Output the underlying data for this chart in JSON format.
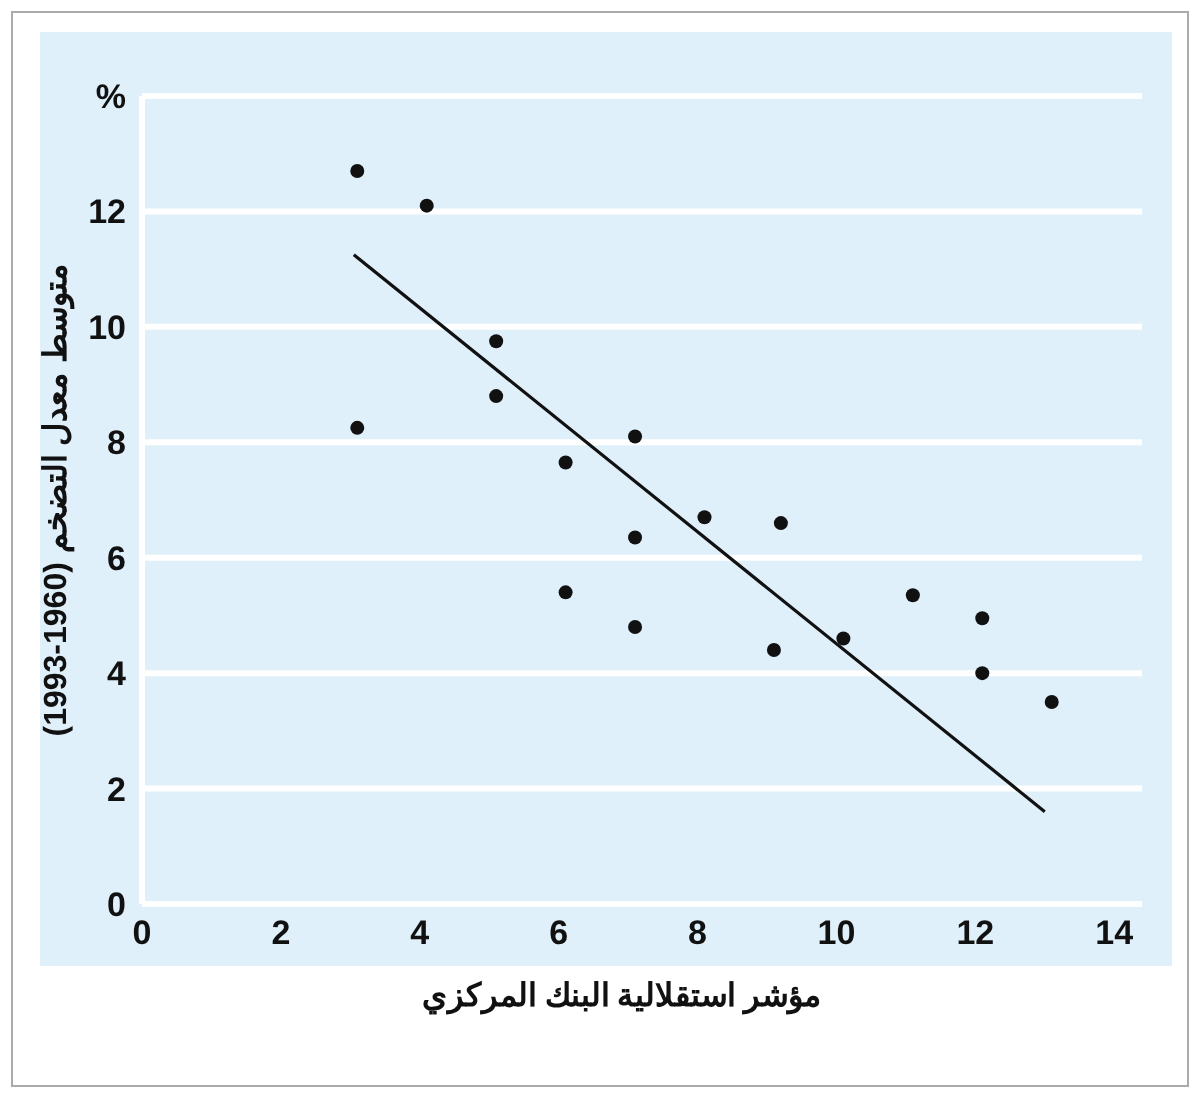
{
  "chart_data": {
    "type": "scatter",
    "xlabel": "مؤشر استقلالية البنك المركزي",
    "ylabel": "متوسط معدل التضخم (1960-1993)",
    "series": [
      {
        "color": "#111111",
        "marker": "circle",
        "x": [
          3.1,
          4.1,
          5.1,
          5.1,
          3.1,
          6.1,
          7.1,
          7.1,
          6.1,
          7.1,
          8.1,
          9.2,
          9.1,
          10.1,
          11.1,
          12.1,
          12.1,
          13.1
        ],
        "values": [
          12.7,
          12.1,
          9.75,
          8.8,
          8.25,
          7.65,
          8.1,
          6.35,
          5.4,
          4.8,
          6.7,
          6.6,
          4.4,
          4.6,
          5.35,
          4.95,
          4.0,
          3.5
        ]
      },
      {
        "type": "line",
        "color": "#111111",
        "line_style": "solid",
        "x": [
          3.05,
          13.0
        ],
        "values": [
          11.25,
          1.6
        ]
      }
    ],
    "xlim": [
      0,
      14.4
    ],
    "ylim": [
      0,
      14
    ],
    "xticks": [
      0,
      2,
      4,
      6,
      8,
      10,
      12,
      14
    ],
    "yticks": [
      0,
      2,
      4,
      6,
      8,
      10,
      12,
      {
        "value": 14,
        "label": "%"
      }
    ],
    "grid": "y"
  }
}
